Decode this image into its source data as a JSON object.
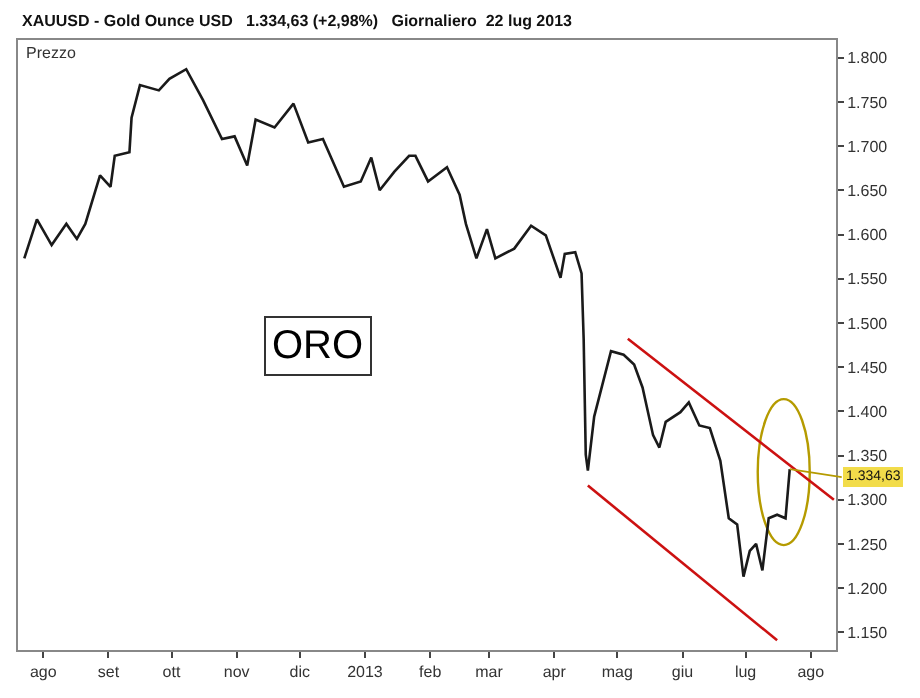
{
  "chart_data": {
    "type": "line",
    "title": "XAUUSD - Gold Ounce USD   1.334,63 (+2,98%)   Giornaliero  22 lug 2013",
    "ylabel": "Prezzo",
    "annotations": [
      "ORO",
      {
        "text": "1.334,63",
        "x": "2013-07-22",
        "y": 1334.63
      }
    ],
    "series": [
      {
        "color": "#1a1a1a",
        "x": [
          "2012-07-23",
          "2012-07-29",
          "2012-08-05",
          "2012-08-12",
          "2012-08-17",
          "2012-08-21",
          "2012-08-28",
          "2012-09-02",
          "2012-09-04",
          "2012-09-11",
          "2012-09-12",
          "2012-09-16",
          "2012-09-25",
          "2012-09-30",
          "2012-10-08",
          "2012-10-16",
          "2012-10-25",
          "2012-10-31",
          "2012-11-06",
          "2012-11-10",
          "2012-11-19",
          "2012-11-28",
          "2012-12-05",
          "2012-12-12",
          "2012-12-22",
          "2012-12-30",
          "2013-01-04",
          "2013-01-08",
          "2013-01-15",
          "2013-01-22",
          "2013-01-25",
          "2013-01-31",
          "2013-02-09",
          "2013-02-15",
          "2013-02-18",
          "2013-02-23",
          "2013-02-28",
          "2013-03-04",
          "2013-03-13",
          "2013-03-21",
          "2013-03-28",
          "2013-04-04",
          "2013-04-06",
          "2013-04-11",
          "2013-04-14",
          "2013-04-15",
          "2013-04-16",
          "2013-04-17",
          "2013-04-20",
          "2013-04-24",
          "2013-04-28",
          "2013-05-04",
          "2013-05-09",
          "2013-05-13",
          "2013-05-18",
          "2013-05-21",
          "2013-05-24",
          "2013-05-31",
          "2013-06-04",
          "2013-06-09",
          "2013-06-14",
          "2013-06-19",
          "2013-06-23",
          "2013-06-27",
          "2013-06-30",
          "2013-07-03",
          "2013-07-06",
          "2013-07-09",
          "2013-07-12",
          "2013-07-16",
          "2013-07-20",
          "2013-07-22"
        ],
        "values": [
          1573,
          1617,
          1588,
          1612,
          1595,
          1612,
          1667,
          1654,
          1689,
          1693,
          1732,
          1769,
          1763,
          1776,
          1787,
          1752,
          1708,
          1711,
          1678,
          1730,
          1721,
          1748,
          1704,
          1708,
          1654,
          1660,
          1687,
          1650,
          1671,
          1689,
          1689,
          1660,
          1676,
          1645,
          1612,
          1573,
          1606,
          1573,
          1584,
          1610,
          1599,
          1551,
          1578,
          1580,
          1556,
          1482,
          1351,
          1333,
          1394,
          1431,
          1468,
          1464,
          1453,
          1427,
          1373,
          1359,
          1388,
          1399,
          1410,
          1384,
          1381,
          1344,
          1279,
          1272,
          1213,
          1242,
          1250,
          1220,
          1279,
          1283,
          1279,
          1334.63
        ]
      },
      {
        "color": "#cc1111",
        "x": [
          "2013-05-06",
          "2013-08-12"
        ],
        "values": [
          1482,
          1300
        ]
      },
      {
        "color": "#cc1111",
        "x": [
          "2013-04-17",
          "2013-07-16"
        ],
        "values": [
          1316,
          1141
        ]
      }
    ],
    "xlim": [
      "2012-07-20",
      "2013-08-13"
    ],
    "xticks": [
      {
        "value": "2012-08-01",
        "label": "ago"
      },
      {
        "value": "2012-09-01",
        "label": "set"
      },
      {
        "value": "2012-10-01",
        "label": "ott"
      },
      {
        "value": "2012-11-01",
        "label": "nov"
      },
      {
        "value": "2012-12-01",
        "label": "dic"
      },
      {
        "value": "2013-01-01",
        "label": "2013"
      },
      {
        "value": "2013-02-01",
        "label": "feb"
      },
      {
        "value": "2013-03-01",
        "label": "mar"
      },
      {
        "value": "2013-04-01",
        "label": "apr"
      },
      {
        "value": "2013-05-01",
        "label": "mag"
      },
      {
        "value": "2013-06-01",
        "label": "giu"
      },
      {
        "value": "2013-07-01",
        "label": "lug"
      },
      {
        "value": "2013-08-01",
        "label": "ago"
      }
    ],
    "ylim": [
      1130,
      1820
    ],
    "yticks": [
      {
        "value": 1150,
        "label": "1.150"
      },
      {
        "value": 1200,
        "label": "1.200"
      },
      {
        "value": 1250,
        "label": "1.250"
      },
      {
        "value": 1300,
        "label": "1.300"
      },
      {
        "value": 1350,
        "label": "1.350"
      },
      {
        "value": 1400,
        "label": "1.400"
      },
      {
        "value": 1450,
        "label": "1.450"
      },
      {
        "value": 1500,
        "label": "1.500"
      },
      {
        "value": 1550,
        "label": "1.550"
      },
      {
        "value": 1600,
        "label": "1.600"
      },
      {
        "value": 1650,
        "label": "1.650"
      },
      {
        "value": 1700,
        "label": "1.700"
      },
      {
        "value": 1750,
        "label": "1.750"
      },
      {
        "value": 1800,
        "label": "1.800"
      }
    ],
    "marker": "none",
    "line_style": "solid"
  }
}
